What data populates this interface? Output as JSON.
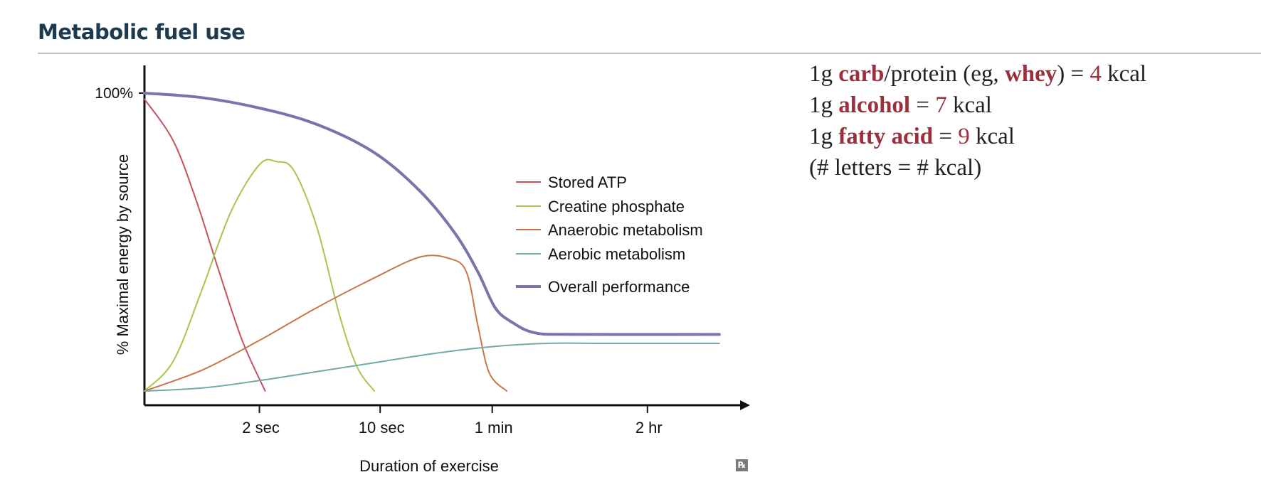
{
  "header": {
    "title": "Metabolic fuel use"
  },
  "facts": [
    {
      "prefix": "1g ",
      "items": [
        {
          "t": "carb",
          "s": "hl"
        },
        {
          "t": "/protein (eg, ",
          "s": ""
        },
        {
          "t": "whey",
          "s": "hl"
        },
        {
          "t": ") = ",
          "s": ""
        },
        {
          "t": "4",
          "s": "num"
        },
        {
          "t": " kcal",
          "s": ""
        }
      ]
    },
    {
      "prefix": "1g ",
      "items": [
        {
          "t": "alcohol",
          "s": "hl"
        },
        {
          "t": " = ",
          "s": ""
        },
        {
          "t": "7",
          "s": "num"
        },
        {
          "t": " kcal",
          "s": ""
        }
      ]
    },
    {
      "prefix": "1g ",
      "items": [
        {
          "t": "fatty acid",
          "s": "hl"
        },
        {
          "t": " = ",
          "s": ""
        },
        {
          "t": "9",
          "s": "num"
        },
        {
          "t": " kcal",
          "s": ""
        }
      ]
    },
    {
      "prefix": "",
      "items": [
        {
          "t": "(# letters = # kcal)",
          "s": ""
        }
      ]
    }
  ],
  "rx_mark": "℞",
  "chart_data": {
    "type": "line",
    "title": "",
    "xlabel": "Duration of exercise",
    "ylabel": "% Maximal energy by source",
    "x_ticks": [
      {
        "label": "2 sec",
        "x": 2
      },
      {
        "label": "10 sec",
        "x": 4.1
      },
      {
        "label": "1 min",
        "x": 6.05
      },
      {
        "label": "2 hr",
        "x": 8.75
      }
    ],
    "y_ticks": [
      {
        "label": "100%",
        "y": 100
      }
    ],
    "xlim": [
      0,
      10.3
    ],
    "ylim": [
      -5,
      105
    ],
    "legend_position": "center-right",
    "series": [
      {
        "name": "Stored ATP",
        "color": "#c9505f",
        "width": 2,
        "points": [
          [
            0,
            98
          ],
          [
            0.5,
            84
          ],
          [
            0.9,
            64
          ],
          [
            1.3,
            40
          ],
          [
            1.7,
            17
          ],
          [
            2.1,
            0
          ]
        ]
      },
      {
        "name": "Creatine phosphate",
        "color": "#a9c44a",
        "width": 2,
        "points": [
          [
            0,
            0
          ],
          [
            0.5,
            10
          ],
          [
            1,
            34
          ],
          [
            1.5,
            60
          ],
          [
            2,
            76
          ],
          [
            2.3,
            77
          ],
          [
            2.6,
            74
          ],
          [
            3,
            55
          ],
          [
            3.4,
            25
          ],
          [
            3.7,
            8
          ],
          [
            4,
            0
          ]
        ]
      },
      {
        "name": "Anaerobic metabolism",
        "color": "#c8754a",
        "width": 2,
        "points": [
          [
            0,
            0
          ],
          [
            1,
            7
          ],
          [
            2,
            17
          ],
          [
            3,
            28
          ],
          [
            4,
            38
          ],
          [
            4.8,
            45
          ],
          [
            5.3,
            44.5
          ],
          [
            5.6,
            40
          ],
          [
            5.8,
            22
          ],
          [
            6,
            6
          ],
          [
            6.3,
            0
          ]
        ]
      },
      {
        "name": "Aerobic metabolism",
        "color": "#6fa9a8",
        "width": 2,
        "points": [
          [
            0,
            0
          ],
          [
            1,
            1
          ],
          [
            2,
            3.5
          ],
          [
            3,
            6.5
          ],
          [
            4,
            9.5
          ],
          [
            5,
            12.5
          ],
          [
            6,
            14.8
          ],
          [
            7,
            16
          ],
          [
            8,
            16
          ],
          [
            10,
            16
          ]
        ]
      },
      {
        "name": "Overall performance",
        "color": "#7b74ac",
        "width": 4,
        "points": [
          [
            0,
            100
          ],
          [
            1,
            98.5
          ],
          [
            2,
            95
          ],
          [
            3,
            89.5
          ],
          [
            4,
            80
          ],
          [
            4.8,
            67
          ],
          [
            5.4,
            53
          ],
          [
            5.8,
            40
          ],
          [
            6.1,
            28
          ],
          [
            6.4,
            23
          ],
          [
            6.8,
            19.5
          ],
          [
            7.5,
            19
          ],
          [
            10,
            19
          ]
        ]
      }
    ]
  }
}
